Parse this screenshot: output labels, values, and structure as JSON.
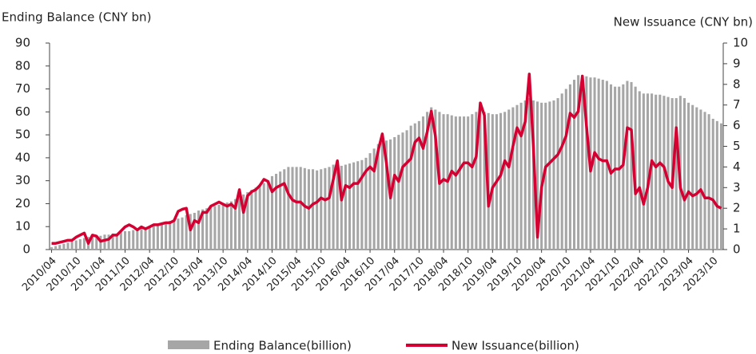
{
  "chart_data": {
    "type": "combo",
    "y_label": "Ending Balance (CNY bn)",
    "y2_label": "New Issuance (CNY bn)",
    "categories": [
      "2010/04",
      null,
      null,
      null,
      null,
      null,
      "2010/10",
      null,
      null,
      null,
      null,
      null,
      "2011/04",
      null,
      null,
      null,
      null,
      null,
      "2011/10",
      null,
      null,
      null,
      null,
      null,
      "2012/04",
      null,
      null,
      null,
      null,
      null,
      "2012/10",
      null,
      null,
      null,
      null,
      null,
      "2013/04",
      null,
      null,
      null,
      null,
      null,
      "2013/10",
      null,
      null,
      null,
      null,
      null,
      "2014/04",
      null,
      null,
      null,
      null,
      null,
      "2014/10",
      null,
      null,
      null,
      null,
      null,
      "2015/04",
      null,
      null,
      null,
      null,
      null,
      "2015/10",
      null,
      null,
      null,
      null,
      null,
      "2016/04",
      null,
      null,
      null,
      null,
      null,
      "2016/10",
      null,
      null,
      null,
      null,
      null,
      "2017/04",
      null,
      null,
      null,
      null,
      null,
      "2017/10",
      null,
      null,
      null,
      null,
      null,
      "2018/04",
      null,
      null,
      null,
      null,
      null,
      "2018/10",
      null,
      null,
      null,
      null,
      null,
      "2019/04",
      null,
      null,
      null,
      null,
      null,
      "2019/10",
      null,
      null,
      null,
      null,
      null,
      "2020/04",
      null,
      null,
      null,
      null,
      null,
      "2020/10",
      null,
      null,
      null,
      null,
      null,
      "2021/04",
      null,
      null,
      null,
      null,
      null,
      "2021/10",
      null,
      null,
      null,
      null,
      null,
      "2022/04",
      null,
      null,
      null,
      null,
      null,
      "2022/10",
      null,
      null,
      null,
      null,
      null,
      "2023/04",
      null,
      null,
      null,
      null,
      null,
      "2023/10",
      null,
      null
    ],
    "series": [
      {
        "name": "Ending Balance(billion)",
        "type": "bar",
        "color": "#a6a6a6",
        "values": [
          1,
          1.5,
          2,
          2.5,
          3,
          3.5,
          4,
          4.5,
          5,
          5.5,
          5.5,
          6,
          6,
          6.5,
          6.5,
          7,
          7,
          7.5,
          8,
          8,
          8.5,
          9,
          9,
          9.5,
          10,
          10.5,
          11,
          11.5,
          12,
          12.5,
          13,
          13.5,
          14,
          15,
          15.5,
          16,
          17,
          17.5,
          18,
          18.5,
          19,
          19.5,
          20,
          20.5,
          21,
          22,
          23,
          24,
          25,
          26,
          27,
          28,
          29,
          30,
          32,
          33,
          34,
          35,
          36,
          36,
          36,
          36,
          35.5,
          35,
          35,
          34.5,
          35,
          35.5,
          36,
          37,
          36.5,
          36.5,
          37,
          37.5,
          38,
          38.5,
          39,
          40,
          42,
          44,
          46,
          48,
          47.5,
          48,
          49,
          50,
          51,
          52,
          54,
          55,
          56,
          58,
          60,
          62,
          61,
          60,
          59,
          59,
          58.5,
          58,
          58,
          58,
          58,
          59,
          60,
          61,
          60,
          59.5,
          59,
          59,
          59.5,
          60,
          61,
          62,
          63,
          64,
          65,
          66,
          65,
          64.5,
          64,
          64,
          64.5,
          65,
          66,
          68,
          70,
          72,
          74,
          76,
          76,
          75.5,
          75,
          75,
          74.5,
          74,
          73.5,
          72,
          71,
          71,
          72,
          73.5,
          73,
          71,
          69,
          68,
          68,
          68,
          67.5,
          67.5,
          67,
          66.5,
          66,
          66,
          67,
          66,
          64,
          63,
          62,
          61,
          60,
          59,
          57,
          56,
          55
        ]
      },
      {
        "name": "New Issuance(billion)",
        "type": "line",
        "axis": "y2",
        "color": "#d50032",
        "values": [
          0.3,
          0.3,
          0.35,
          0.4,
          0.45,
          0.45,
          0.6,
          0.7,
          0.8,
          0.3,
          0.7,
          0.65,
          0.4,
          0.45,
          0.5,
          0.7,
          0.7,
          0.9,
          1.1,
          1.2,
          1.1,
          0.95,
          1.1,
          1.0,
          1.1,
          1.2,
          1.2,
          1.25,
          1.3,
          1.3,
          1.4,
          1.85,
          1.95,
          2.0,
          0.95,
          1.4,
          1.3,
          1.8,
          1.8,
          2.1,
          2.2,
          2.3,
          2.2,
          2.1,
          2.2,
          2.0,
          2.9,
          1.8,
          2.6,
          2.8,
          2.9,
          3.1,
          3.4,
          3.3,
          2.8,
          3.0,
          3.1,
          3.2,
          2.7,
          2.4,
          2.3,
          2.3,
          2.1,
          2.0,
          2.2,
          2.3,
          2.5,
          2.4,
          2.5,
          3.4,
          4.3,
          2.4,
          3.1,
          3.0,
          3.2,
          3.2,
          3.5,
          3.8,
          4.0,
          3.8,
          4.8,
          5.6,
          4.2,
          2.5,
          3.6,
          3.3,
          4.0,
          4.2,
          4.4,
          5.2,
          5.4,
          4.9,
          5.7,
          6.7,
          5.5,
          3.2,
          3.4,
          3.3,
          3.8,
          3.6,
          3.9,
          4.2,
          4.2,
          4.0,
          4.5,
          7.1,
          6.5,
          2.1,
          3.0,
          3.3,
          3.6,
          4.3,
          4.0,
          5.0,
          5.9,
          5.5,
          6.2,
          8.5,
          5.0,
          0.6,
          3.0,
          4.0,
          4.2,
          4.4,
          4.6,
          5.0,
          5.5,
          6.6,
          6.4,
          6.7,
          8.4,
          6.0,
          3.8,
          4.7,
          4.4,
          4.3,
          4.3,
          3.7,
          3.9,
          3.9,
          4.1,
          5.9,
          5.8,
          2.7,
          3.0,
          2.2,
          3.0,
          4.3,
          4.0,
          4.2,
          4.0,
          3.3,
          3.0,
          5.9,
          3.0,
          2.4,
          2.8,
          2.6,
          2.7,
          2.9,
          2.5,
          2.5,
          2.4,
          2.1,
          2.0
        ]
      }
    ],
    "ylim": [
      0,
      90
    ],
    "yticks": [
      0,
      10,
      20,
      30,
      40,
      50,
      60,
      70,
      80,
      90
    ],
    "y2lim": [
      0,
      10
    ],
    "y2ticks": [
      0,
      1,
      2,
      3,
      4,
      5,
      6,
      7,
      8,
      9,
      10
    ]
  }
}
